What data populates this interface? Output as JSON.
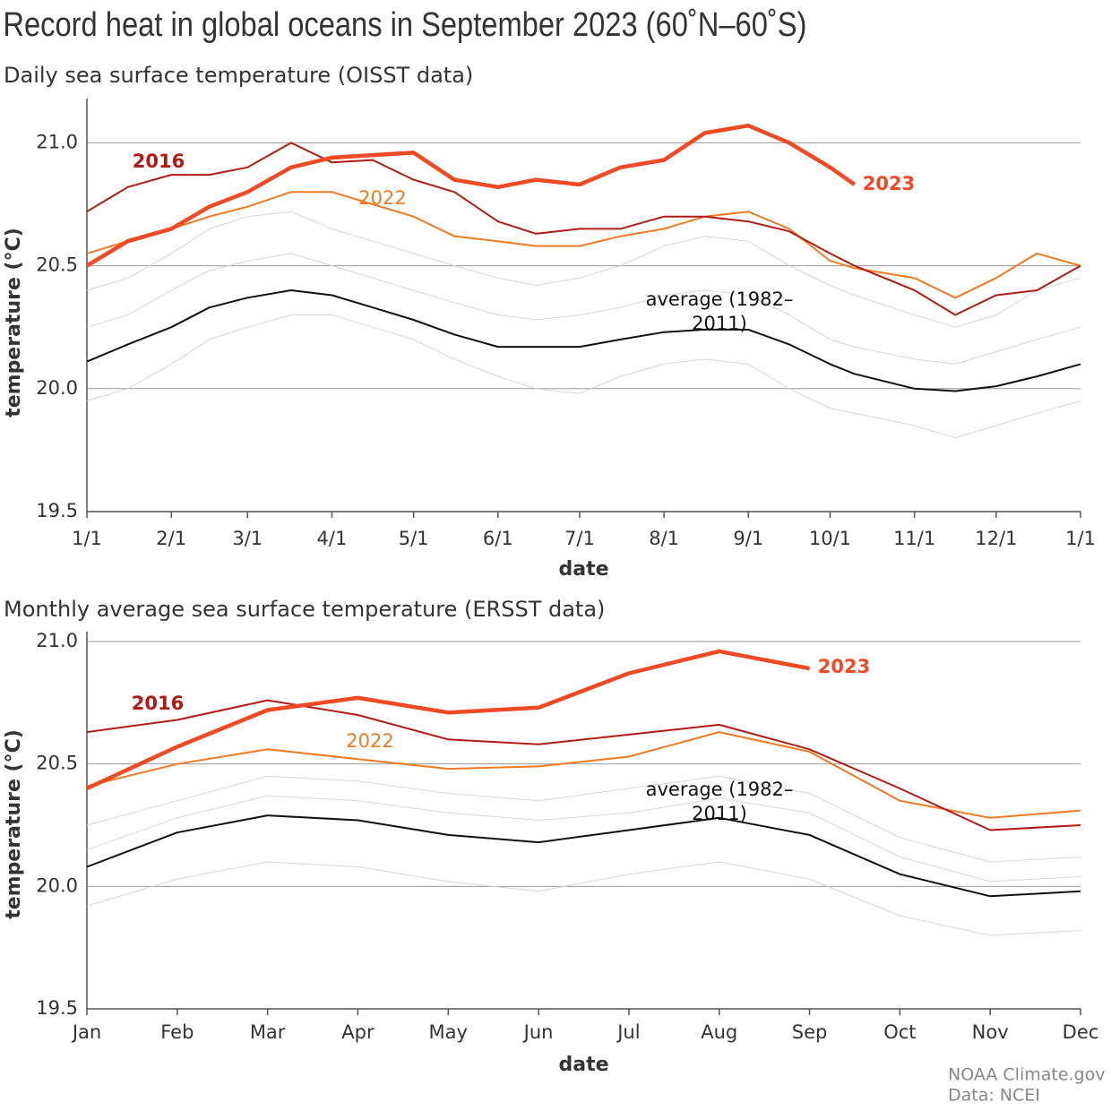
{
  "credits": [
    "NOAA Climate.gov",
    "Data: NCEI"
  ],
  "chart_data": [
    {
      "type": "line",
      "title": "Record heat in global oceans in September 2023 (60˚N–60˚S)",
      "subtitle": "Daily sea surface temperature (OISST data)",
      "xlabel": "date",
      "ylabel": "temperature (°C)",
      "x": [
        0,
        15,
        31,
        45,
        59,
        75,
        90,
        105,
        120,
        135,
        151,
        165,
        181,
        196,
        212,
        227,
        243,
        258,
        273,
        282,
        304,
        319,
        334,
        349,
        365
      ],
      "xlim": [
        0,
        365
      ],
      "xticks": [
        {
          "value": 0,
          "label": "1/1"
        },
        {
          "value": 31,
          "label": "2/1"
        },
        {
          "value": 59,
          "label": "3/1"
        },
        {
          "value": 90,
          "label": "4/1"
        },
        {
          "value": 120,
          "label": "5/1"
        },
        {
          "value": 151,
          "label": "6/1"
        },
        {
          "value": 181,
          "label": "7/1"
        },
        {
          "value": 212,
          "label": "8/1"
        },
        {
          "value": 243,
          "label": "9/1"
        },
        {
          "value": 273,
          "label": "10/1"
        },
        {
          "value": 304,
          "label": "11/1"
        },
        {
          "value": 334,
          "label": "12/1"
        },
        {
          "value": 365,
          "label": "1/1"
        }
      ],
      "ylim": [
        19.5,
        21.18
      ],
      "yticks": [
        19.5,
        {
          "value": 20,
          "label": "20.0"
        },
        20.5,
        {
          "value": 21,
          "label": "21.0"
        }
      ],
      "grid": true,
      "series": [
        {
          "color": "#d6d6d6",
          "values": [
            20.25,
            20.3,
            20.4,
            20.48,
            20.52,
            20.55,
            20.5,
            20.45,
            20.4,
            20.35,
            20.3,
            20.28,
            20.3,
            20.33,
            20.38,
            20.4,
            20.38,
            20.3,
            20.2,
            20.17,
            20.12,
            20.1,
            20.15,
            20.2,
            20.25
          ]
        },
        {
          "color": "#d6d6d6",
          "values": [
            19.95,
            20.0,
            20.1,
            20.2,
            20.25,
            20.3,
            20.3,
            20.25,
            20.2,
            20.12,
            20.05,
            20.0,
            19.98,
            20.05,
            20.1,
            20.12,
            20.1,
            20.0,
            19.92,
            19.9,
            19.85,
            19.8,
            19.85,
            19.9,
            19.95
          ]
        },
        {
          "color": "#d6d6d6",
          "values": [
            20.4,
            20.45,
            20.55,
            20.65,
            20.7,
            20.72,
            20.65,
            20.6,
            20.55,
            20.5,
            20.45,
            20.42,
            20.45,
            20.5,
            20.58,
            20.62,
            20.6,
            20.5,
            20.42,
            20.38,
            20.3,
            20.25,
            20.3,
            20.4,
            20.45
          ]
        },
        {
          "name": "average (1982–2011)",
          "color": "#111111",
          "values": [
            20.11,
            20.18,
            20.25,
            20.33,
            20.37,
            20.4,
            20.38,
            20.33,
            20.28,
            20.22,
            20.17,
            20.17,
            20.17,
            20.2,
            20.23,
            20.24,
            20.24,
            20.18,
            20.1,
            20.06,
            20.0,
            19.99,
            20.01,
            20.05,
            20.1
          ]
        },
        {
          "name": "2022",
          "color": "#f07a22",
          "values": [
            20.55,
            20.6,
            20.65,
            20.7,
            20.74,
            20.8,
            20.8,
            20.75,
            20.7,
            20.62,
            20.6,
            20.58,
            20.58,
            20.62,
            20.65,
            20.7,
            20.72,
            20.65,
            20.52,
            20.49,
            20.45,
            20.37,
            20.45,
            20.55,
            20.5
          ]
        },
        {
          "name": "2016",
          "color": "#b01c14",
          "values": [
            20.72,
            20.82,
            20.87,
            20.87,
            20.9,
            21.0,
            20.92,
            20.93,
            20.85,
            20.8,
            20.68,
            20.63,
            20.65,
            20.65,
            20.7,
            20.7,
            20.68,
            20.64,
            20.55,
            20.5,
            20.4,
            20.3,
            20.38,
            20.4,
            20.5
          ]
        },
        {
          "name": "2023",
          "color": "#f04a24",
          "values": [
            20.5,
            20.6,
            20.65,
            20.74,
            20.8,
            20.9,
            20.94,
            20.95,
            20.96,
            20.85,
            20.82,
            20.85,
            20.83,
            20.9,
            20.93,
            21.04,
            21.07,
            21.0,
            20.9,
            20.83,
            null,
            null,
            null,
            null,
            null
          ]
        }
      ]
    },
    {
      "type": "line",
      "subtitle": "Monthly average sea surface temperature (ERSST data)",
      "xlabel": "date",
      "ylabel": "temperature (°C)",
      "categories": [
        "Jan",
        "Feb",
        "Mar",
        "Apr",
        "May",
        "Jun",
        "Jul",
        "Aug",
        "Sep",
        "Oct",
        "Nov",
        "Dec"
      ],
      "ylim": [
        19.5,
        21.0
      ],
      "yticks": [
        19.5,
        {
          "value": 20,
          "label": "20.0"
        },
        20.5,
        {
          "value": 21,
          "label": "21.0"
        }
      ],
      "grid": true,
      "series": [
        {
          "color": "#d6d6d6",
          "values": [
            20.25,
            20.35,
            20.45,
            20.43,
            20.38,
            20.35,
            20.4,
            20.45,
            20.38,
            20.2,
            20.1,
            20.12
          ]
        },
        {
          "color": "#d6d6d6",
          "values": [
            19.92,
            20.03,
            20.1,
            20.08,
            20.02,
            19.98,
            20.05,
            20.1,
            20.03,
            19.88,
            19.8,
            19.82
          ]
        },
        {
          "color": "#d6d6d6",
          "values": [
            20.15,
            20.28,
            20.37,
            20.35,
            20.3,
            20.27,
            20.3,
            20.36,
            20.3,
            20.12,
            20.02,
            20.04
          ]
        },
        {
          "name": "average (1982–2011)",
          "color": "#111111",
          "values": [
            20.08,
            20.22,
            20.29,
            20.27,
            20.21,
            20.18,
            20.23,
            20.28,
            20.21,
            20.05,
            19.96,
            19.98
          ]
        },
        {
          "name": "2022",
          "color": "#f07a22",
          "values": [
            20.41,
            20.5,
            20.56,
            20.52,
            20.48,
            20.49,
            20.53,
            20.63,
            20.55,
            20.35,
            20.28,
            20.31
          ]
        },
        {
          "name": "2016",
          "color": "#b01c14",
          "values": [
            20.63,
            20.68,
            20.76,
            20.7,
            20.6,
            20.58,
            20.62,
            20.66,
            20.56,
            20.4,
            20.23,
            20.25
          ]
        },
        {
          "name": "2023",
          "color": "#f04a24",
          "values": [
            20.4,
            20.57,
            20.72,
            20.77,
            20.71,
            20.73,
            20.87,
            20.96,
            20.89,
            null,
            null,
            null
          ]
        }
      ]
    }
  ]
}
